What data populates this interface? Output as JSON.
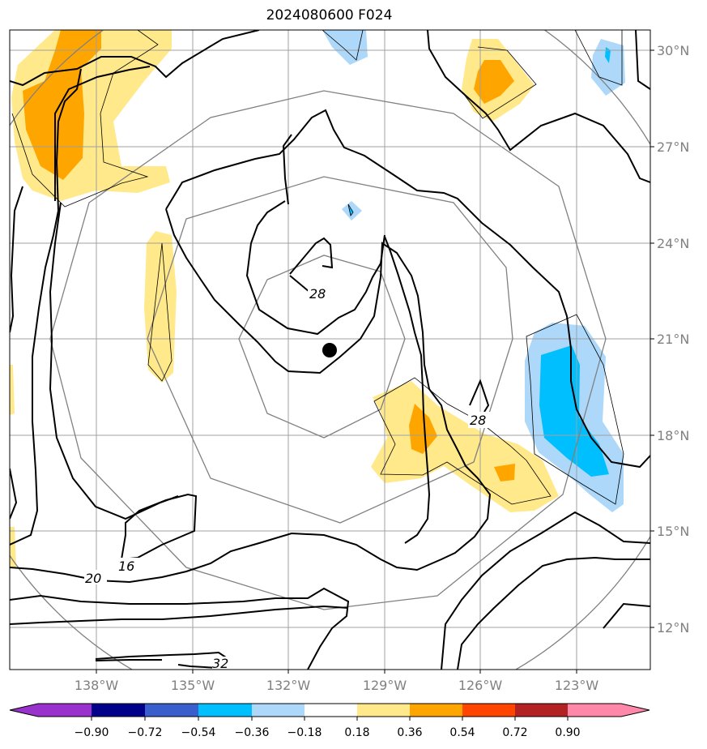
{
  "title": "2024080600 F024",
  "map": {
    "longitude_labels": [
      "138°W",
      "135°W",
      "132°W",
      "129°W",
      "126°W",
      "123°W"
    ],
    "latitude_labels": [
      "30°N",
      "27°N",
      "24°N",
      "21°N",
      "18°N",
      "15°N",
      "12°N"
    ],
    "contour_labels": [
      "28",
      "28",
      "16",
      "20",
      "32"
    ],
    "storm_center_marker": "filled-circle"
  },
  "colorbar": {
    "ticks": [
      "−0.90",
      "−0.72",
      "−0.54",
      "−0.36",
      "−0.18",
      "0.18",
      "0.36",
      "0.54",
      "0.72",
      "0.90"
    ],
    "colors": [
      "#9932cc",
      "#00008b",
      "#3a5fcd",
      "#00bfff",
      "#add8f9",
      "#ffffff",
      "#ffe98a",
      "#ffa500",
      "#ff4500",
      "#b22222",
      "#ff88aa"
    ]
  }
}
